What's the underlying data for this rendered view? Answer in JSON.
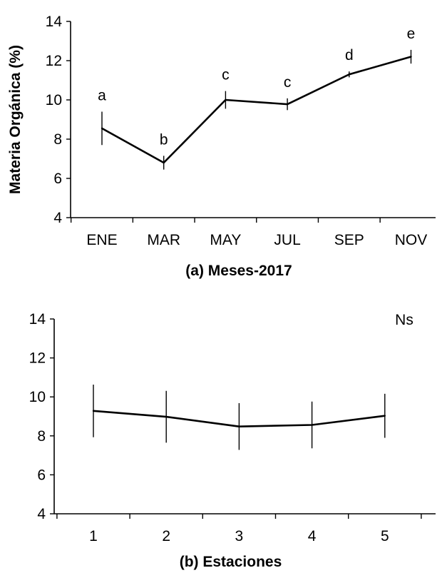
{
  "chart_data": [
    {
      "type": "line",
      "id": "a",
      "title": "",
      "xlabel": "(a) Meses-2017",
      "ylabel": "Materia Orgánica (%)",
      "categories": [
        "ENE",
        "MAR",
        "MAY",
        "JUL",
        "SEP",
        "NOV"
      ],
      "ylim": [
        4,
        14
      ],
      "yticks": [
        4,
        6,
        8,
        10,
        12,
        14
      ],
      "grid": false,
      "legend": "none",
      "series": [
        {
          "values": [
            8.55,
            6.8,
            10.0,
            9.78,
            11.3,
            12.2
          ],
          "error": [
            0.85,
            0.35,
            0.45,
            0.3,
            0.15,
            0.35
          ],
          "labels": [
            "a",
            "b",
            "c",
            "c",
            "d",
            "e"
          ]
        }
      ],
      "annotation": ""
    },
    {
      "type": "line",
      "id": "b",
      "title": "",
      "xlabel": "(b) Estaciones",
      "ylabel": "",
      "categories": [
        "1",
        "2",
        "3",
        "4",
        "5"
      ],
      "ylim": [
        4,
        14
      ],
      "yticks": [
        4,
        6,
        8,
        10,
        12,
        14
      ],
      "grid": false,
      "legend": "none",
      "series": [
        {
          "values": [
            9.28,
            8.98,
            8.48,
            8.56,
            9.03
          ],
          "error": [
            1.35,
            1.33,
            1.2,
            1.2,
            1.13
          ],
          "labels": []
        }
      ],
      "annotation": "Ns"
    }
  ]
}
